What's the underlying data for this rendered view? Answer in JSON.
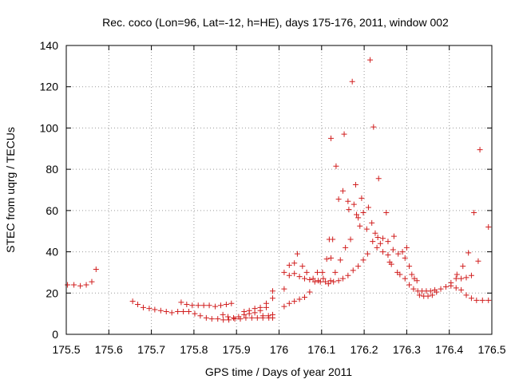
{
  "chart_data": {
    "type": "scatter",
    "title": "Rec. coco (Lon=96, Lat=-12, h=HE), days 175-176, 2011, window 002",
    "xlabel": "GPS time / Days of year 2011",
    "ylabel": "STEC from uqrg / TECUs",
    "xlim": [
      175.5,
      176.5
    ],
    "ylim": [
      0,
      140
    ],
    "xticks": [
      175.5,
      175.6,
      175.7,
      175.8,
      175.9,
      176,
      176.1,
      176.2,
      176.3,
      176.4,
      176.5
    ],
    "xtick_labels": [
      "175.5",
      "175.6",
      "175.7",
      "175.8",
      "175.9",
      "176",
      "176.1",
      "176.2",
      "176.3",
      "176.4",
      "176.5"
    ],
    "yticks": [
      0,
      20,
      40,
      60,
      80,
      100,
      120,
      140
    ],
    "ytick_labels": [
      "0",
      "20",
      "40",
      "60",
      "80",
      "100",
      "120",
      "140"
    ],
    "grid": true,
    "marker": "plus",
    "color": "#d11f1f",
    "points": [
      [
        175.503,
        24
      ],
      [
        175.518,
        24
      ],
      [
        175.533,
        23.5
      ],
      [
        175.547,
        24
      ],
      [
        175.56,
        25.5
      ],
      [
        175.57,
        31.5
      ],
      [
        175.656,
        16
      ],
      [
        175.668,
        14.5
      ],
      [
        175.681,
        13
      ],
      [
        175.695,
        12.5
      ],
      [
        175.708,
        12
      ],
      [
        175.722,
        11.5
      ],
      [
        175.735,
        11
      ],
      [
        175.748,
        10.5
      ],
      [
        175.762,
        11
      ],
      [
        175.775,
        11
      ],
      [
        175.788,
        11
      ],
      [
        175.802,
        10
      ],
      [
        175.815,
        9
      ],
      [
        175.829,
        8
      ],
      [
        175.842,
        7.5
      ],
      [
        175.856,
        7.5
      ],
      [
        175.869,
        7
      ],
      [
        175.882,
        7
      ],
      [
        175.896,
        7.5
      ],
      [
        175.909,
        7.5
      ],
      [
        175.922,
        8
      ],
      [
        175.936,
        8
      ],
      [
        175.949,
        8
      ],
      [
        175.962,
        8
      ],
      [
        175.976,
        8
      ],
      [
        175.985,
        8
      ],
      [
        175.77,
        15.5
      ],
      [
        175.783,
        14.5
      ],
      [
        175.796,
        14
      ],
      [
        175.81,
        14
      ],
      [
        175.823,
        14
      ],
      [
        175.836,
        14
      ],
      [
        175.85,
        13.5
      ],
      [
        175.863,
        14
      ],
      [
        175.876,
        14.5
      ],
      [
        175.888,
        15
      ],
      [
        175.868,
        9.5
      ],
      [
        175.88,
        8.5
      ],
      [
        175.893,
        8
      ],
      [
        175.905,
        8.5
      ],
      [
        175.918,
        9.5
      ],
      [
        175.93,
        10
      ],
      [
        175.943,
        10.5
      ],
      [
        175.956,
        11.5
      ],
      [
        175.97,
        13
      ],
      [
        175.985,
        17.5
      ],
      [
        175.918,
        11
      ],
      [
        175.93,
        11.5
      ],
      [
        175.943,
        12.5
      ],
      [
        175.956,
        13
      ],
      [
        175.97,
        15
      ],
      [
        175.985,
        21
      ],
      [
        175.985,
        9.5
      ],
      [
        175.975,
        9
      ],
      [
        175.962,
        9
      ],
      [
        176.012,
        13.5
      ],
      [
        176.024,
        15
      ],
      [
        176.036,
        16
      ],
      [
        176.048,
        17
      ],
      [
        176.06,
        18
      ],
      [
        176.072,
        20.5
      ],
      [
        176.012,
        22
      ],
      [
        176.024,
        28.5
      ],
      [
        176.036,
        29.5
      ],
      [
        176.048,
        28
      ],
      [
        176.06,
        27
      ],
      [
        176.072,
        26.5
      ],
      [
        176.084,
        25.5
      ],
      [
        176.097,
        25.5
      ],
      [
        176.109,
        25.5
      ],
      [
        176.121,
        26
      ],
      [
        176.012,
        30
      ],
      [
        176.024,
        33.5
      ],
      [
        176.036,
        34.5
      ],
      [
        176.043,
        39
      ],
      [
        176.055,
        33
      ],
      [
        176.065,
        30
      ],
      [
        176.08,
        27
      ],
      [
        176.092,
        26
      ],
      [
        176.104,
        27
      ],
      [
        176.116,
        24.5
      ],
      [
        176.128,
        25.5
      ],
      [
        176.14,
        26
      ],
      [
        176.15,
        27
      ],
      [
        176.162,
        28.5
      ],
      [
        176.174,
        31
      ],
      [
        176.186,
        33
      ],
      [
        176.198,
        36
      ],
      [
        176.208,
        39
      ],
      [
        176.22,
        45
      ],
      [
        176.232,
        47
      ],
      [
        176.244,
        46.5
      ],
      [
        176.256,
        45
      ],
      [
        176.268,
        41
      ],
      [
        176.28,
        39
      ],
      [
        176.09,
        30
      ],
      [
        176.102,
        30
      ],
      [
        176.112,
        36.5
      ],
      [
        176.122,
        37
      ],
      [
        176.132,
        30
      ],
      [
        176.144,
        36
      ],
      [
        176.156,
        42
      ],
      [
        176.168,
        46
      ],
      [
        176.118,
        46
      ],
      [
        176.126,
        46
      ],
      [
        176.122,
        95
      ],
      [
        176.134,
        81.5
      ],
      [
        176.14,
        65.5
      ],
      [
        176.15,
        69.5
      ],
      [
        176.153,
        97
      ],
      [
        176.162,
        64.5
      ],
      [
        176.164,
        60.5
      ],
      [
        176.172,
        122.5
      ],
      [
        176.176,
        63
      ],
      [
        176.18,
        72.5
      ],
      [
        176.182,
        58
      ],
      [
        176.186,
        56.5
      ],
      [
        176.19,
        52.5
      ],
      [
        176.194,
        66
      ],
      [
        176.198,
        59
      ],
      [
        176.206,
        51
      ],
      [
        176.21,
        61.5
      ],
      [
        176.214,
        133
      ],
      [
        176.218,
        54
      ],
      [
        176.222,
        100.5
      ],
      [
        176.226,
        49
      ],
      [
        176.23,
        42
      ],
      [
        176.234,
        75.5
      ],
      [
        176.238,
        44
      ],
      [
        176.244,
        40
      ],
      [
        176.252,
        59
      ],
      [
        176.256,
        38.5
      ],
      [
        176.26,
        35
      ],
      [
        176.264,
        34
      ],
      [
        176.27,
        47.5
      ],
      [
        176.278,
        30
      ],
      [
        176.284,
        29
      ],
      [
        176.29,
        40
      ],
      [
        176.296,
        37
      ],
      [
        176.3,
        42
      ],
      [
        176.306,
        33
      ],
      [
        176.312,
        29
      ],
      [
        176.318,
        27
      ],
      [
        176.324,
        26
      ],
      [
        176.296,
        27
      ],
      [
        176.306,
        24
      ],
      [
        176.316,
        22
      ],
      [
        176.326,
        21
      ],
      [
        176.336,
        21
      ],
      [
        176.346,
        21
      ],
      [
        176.356,
        21
      ],
      [
        176.366,
        21.5
      ],
      [
        176.33,
        19
      ],
      [
        176.34,
        18.5
      ],
      [
        176.35,
        18.5
      ],
      [
        176.36,
        19
      ],
      [
        176.37,
        20.5
      ],
      [
        176.38,
        22
      ],
      [
        176.392,
        23
      ],
      [
        176.404,
        23.5
      ],
      [
        176.416,
        22.5
      ],
      [
        176.428,
        21.5
      ],
      [
        176.44,
        19
      ],
      [
        176.452,
        17.5
      ],
      [
        176.464,
        16.5
      ],
      [
        176.478,
        16.5
      ],
      [
        176.492,
        16.5
      ],
      [
        176.404,
        25
      ],
      [
        176.416,
        27
      ],
      [
        176.428,
        27
      ],
      [
        176.44,
        27.5
      ],
      [
        176.452,
        28.5
      ],
      [
        176.418,
        29
      ],
      [
        176.432,
        33
      ],
      [
        176.445,
        39.5
      ],
      [
        176.458,
        59
      ],
      [
        176.468,
        35.5
      ],
      [
        176.472,
        89.5
      ],
      [
        176.492,
        52
      ]
    ]
  }
}
